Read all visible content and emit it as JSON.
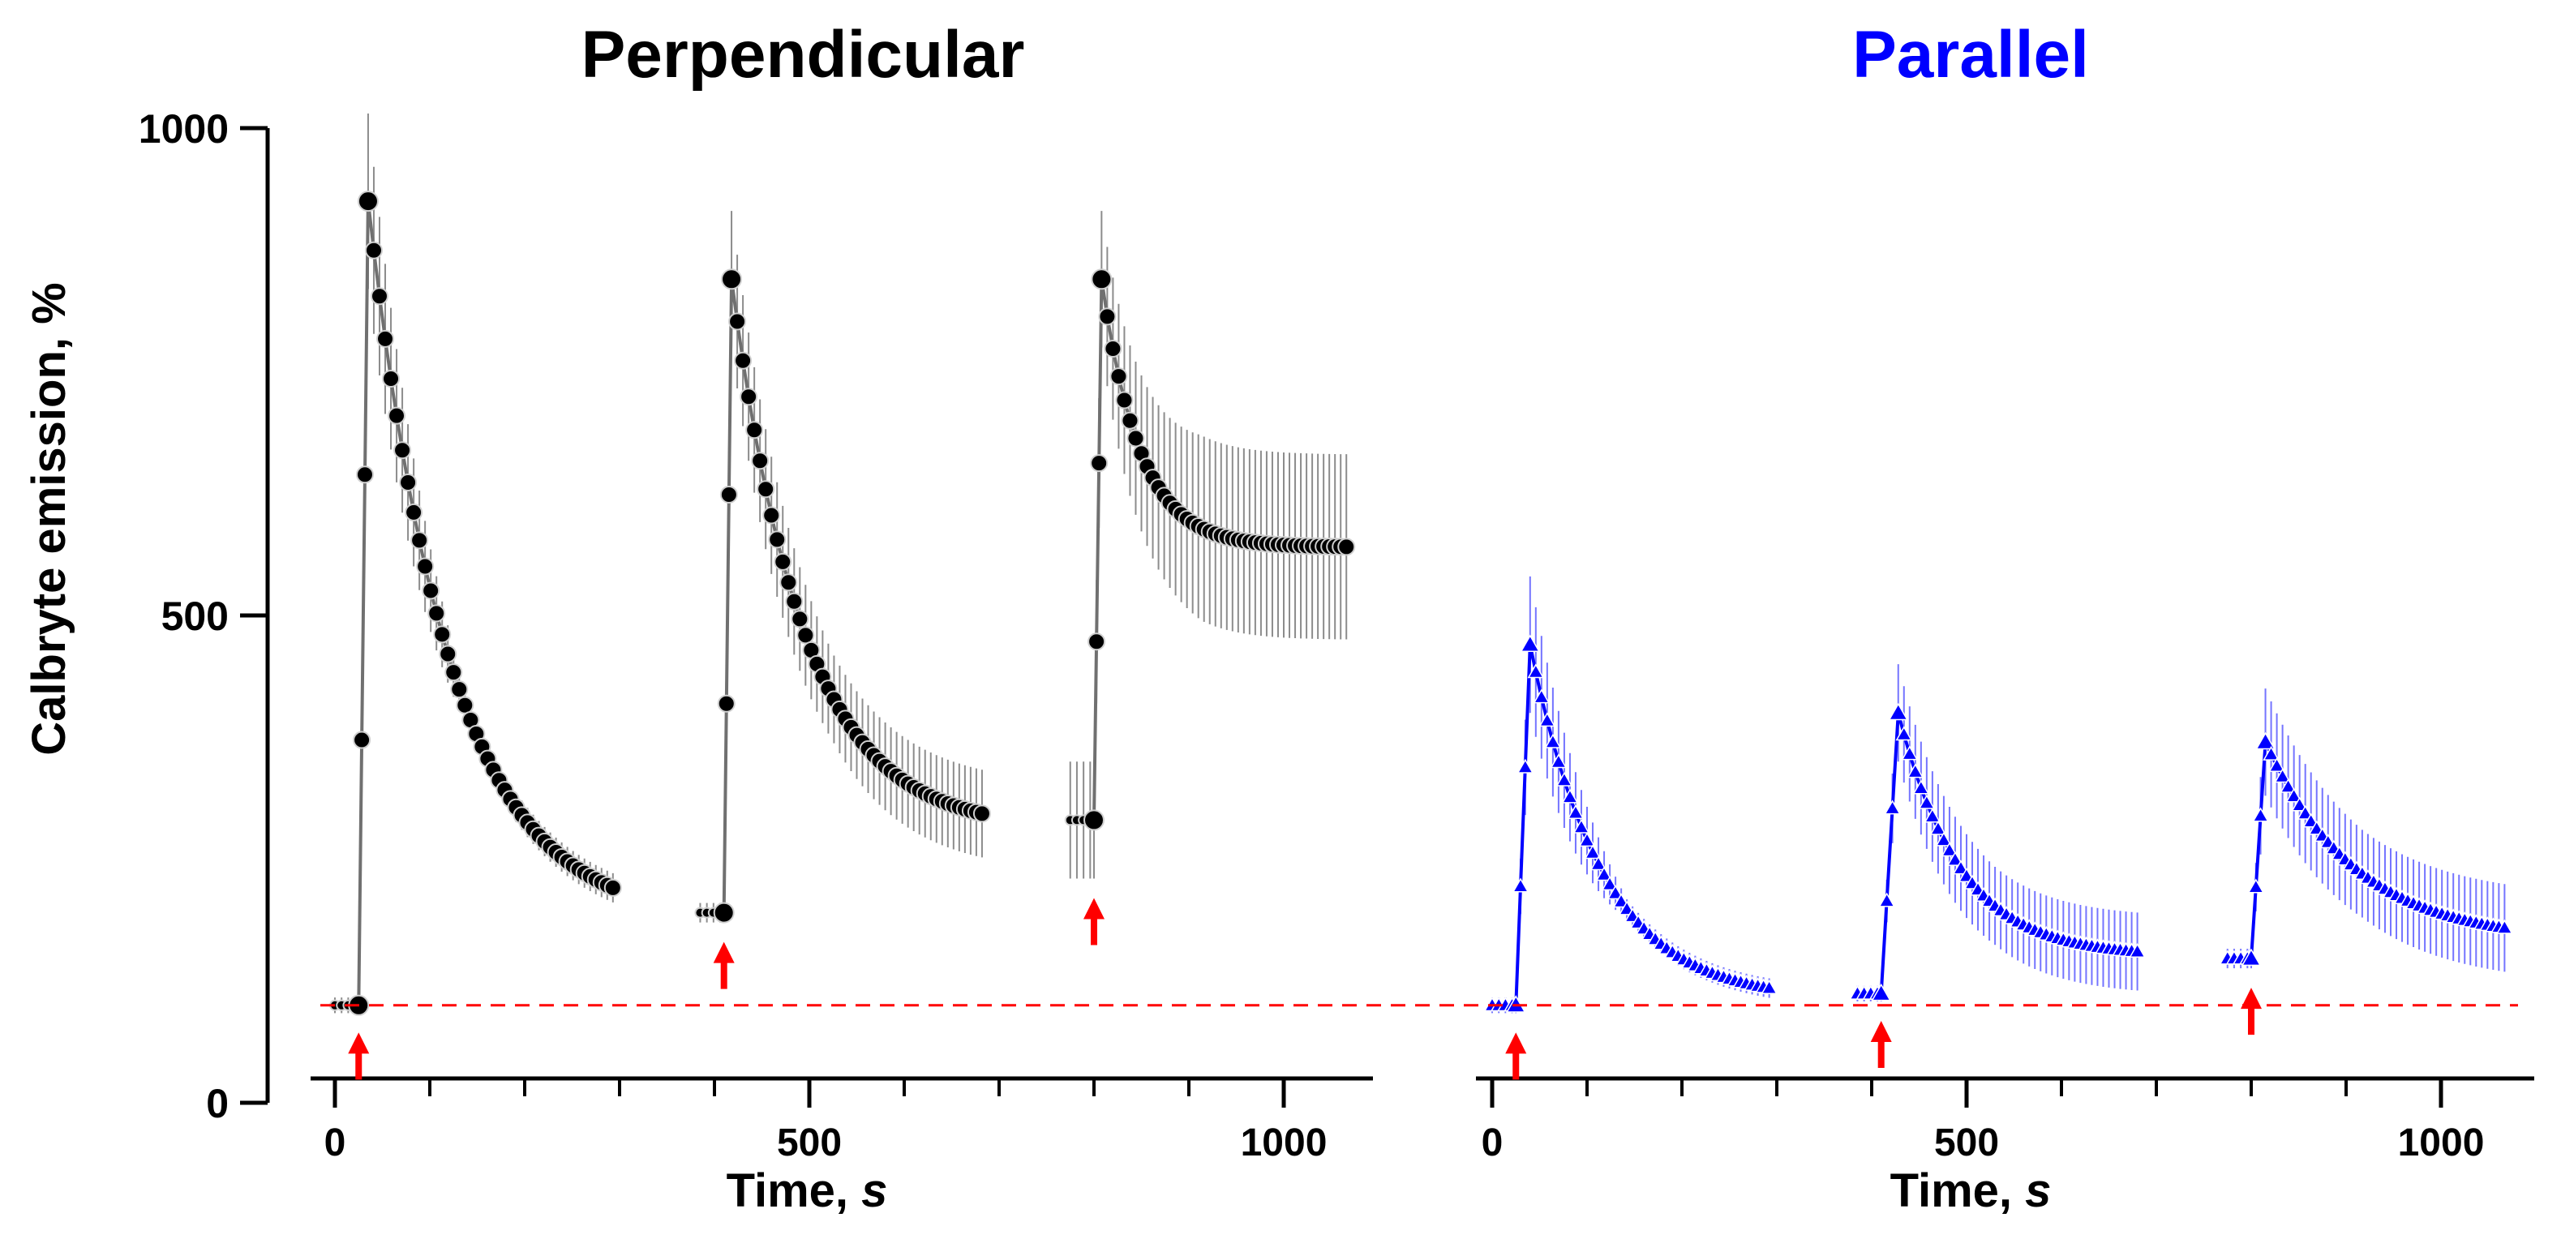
{
  "figure": {
    "ylabel": "Calbryte emission, %",
    "baseline_value": 100
  },
  "colors": {
    "perpendicular": "#000000",
    "perpendicular_line": "#707070",
    "perpendicular_err": "#8c8c8c",
    "parallel": "#0000ff",
    "parallel_err": "#7474ff",
    "arrow": "#ff0000",
    "baseline": "#ff0000"
  },
  "chart_data": [
    {
      "type": "line",
      "title": "Perpendicular",
      "xlabel": "Time, s",
      "ylabel": "Calbryte emission, %",
      "xlim": [
        -20,
        1090
      ],
      "ylim": [
        0,
        1000
      ],
      "xticks": [
        0,
        500,
        1000
      ],
      "yticks": [
        0,
        500,
        1000
      ],
      "marker": "circle",
      "stimulus_times": [
        25,
        410,
        800
      ],
      "baseline": 100,
      "segments": [
        {
          "t_start": 0,
          "t_stim": 25,
          "t_end": 295,
          "pre": 100,
          "peak_time": 35,
          "peak": 925,
          "plateau": 185,
          "tau": 85,
          "err_pre": 8,
          "err_peak": 90,
          "err_end": 15
        },
        {
          "t_start": 385,
          "t_stim": 410,
          "t_end": 685,
          "pre": 195,
          "peak_time": 418,
          "peak": 845,
          "plateau": 280,
          "tau": 75,
          "err_pre": 10,
          "err_peak": 70,
          "err_end": 45
        },
        {
          "t_start": 775,
          "t_stim": 800,
          "t_end": 1070,
          "pre": 290,
          "peak_time": 808,
          "peak": 845,
          "plateau": 570,
          "tau": 40,
          "err_pre": 60,
          "err_peak": 70,
          "err_end": 95
        }
      ]
    },
    {
      "type": "line",
      "title": "Parallel",
      "xlabel": "Time, s",
      "ylabel": "",
      "xlim": [
        -20,
        1090
      ],
      "ylim": [
        0,
        1000
      ],
      "xticks": [
        0,
        500,
        1000
      ],
      "yticks": [],
      "marker": "triangle",
      "stimulus_times": [
        25,
        410,
        800
      ],
      "baseline": 100,
      "segments": [
        {
          "t_start": 0,
          "t_stim": 25,
          "t_end": 295,
          "pre": 100,
          "peak_time": 40,
          "peak": 470,
          "plateau": 105,
          "tau": 75,
          "err_pre": 8,
          "err_peak": 70,
          "err_end": 10
        },
        {
          "t_start": 385,
          "t_stim": 410,
          "t_end": 685,
          "pre": 112,
          "peak_time": 428,
          "peak": 400,
          "plateau": 150,
          "tau": 65,
          "err_pre": 8,
          "err_peak": 50,
          "err_end": 40
        },
        {
          "t_start": 775,
          "t_stim": 800,
          "t_end": 1070,
          "pre": 148,
          "peak_time": 815,
          "peak": 370,
          "plateau": 165,
          "tau": 95,
          "err_pre": 10,
          "err_peak": 55,
          "err_end": 45
        }
      ]
    }
  ]
}
